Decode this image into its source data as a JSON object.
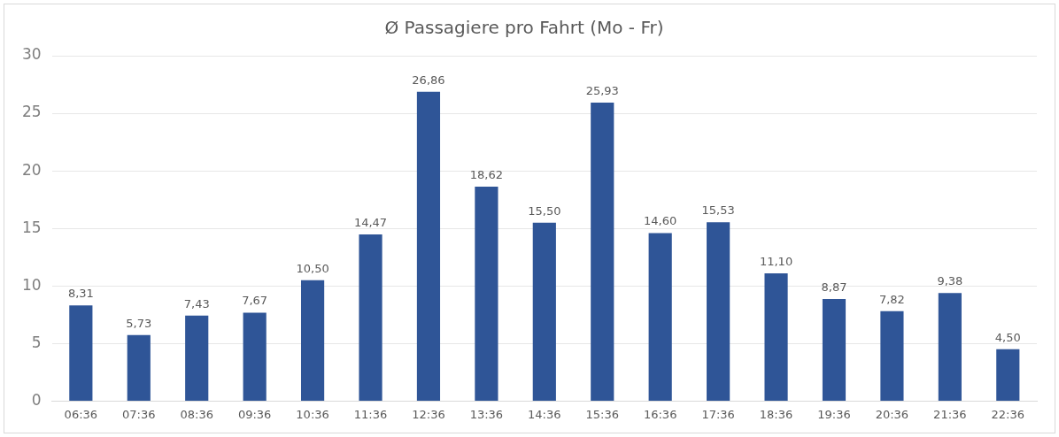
{
  "chart_data": {
    "type": "bar",
    "title": "Ø Passagiere pro Fahrt (Mo - Fr)",
    "categories": [
      "06:36",
      "07:36",
      "08:36",
      "09:36",
      "10:36",
      "11:36",
      "12:36",
      "13:36",
      "14:36",
      "15:36",
      "16:36",
      "17:36",
      "18:36",
      "19:36",
      "20:36",
      "21:36",
      "22:36"
    ],
    "values": [
      8.31,
      5.73,
      7.43,
      7.67,
      10.5,
      14.47,
      26.86,
      18.62,
      15.5,
      25.93,
      14.6,
      15.53,
      11.1,
      8.87,
      7.82,
      9.38,
      4.5
    ],
    "value_labels": [
      "8,31",
      "5,73",
      "7,43",
      "7,67",
      "10,50",
      "14,47",
      "26,86",
      "18,62",
      "15,50",
      "25,93",
      "14,60",
      "15,53",
      "11,10",
      "8,87",
      "7,82",
      "9,38",
      "4,50"
    ],
    "color": "#2f5597",
    "ylim": [
      0,
      30
    ],
    "yticks": [
      0,
      5,
      10,
      15,
      20,
      25,
      30
    ],
    "grid": "y",
    "legend": false
  }
}
